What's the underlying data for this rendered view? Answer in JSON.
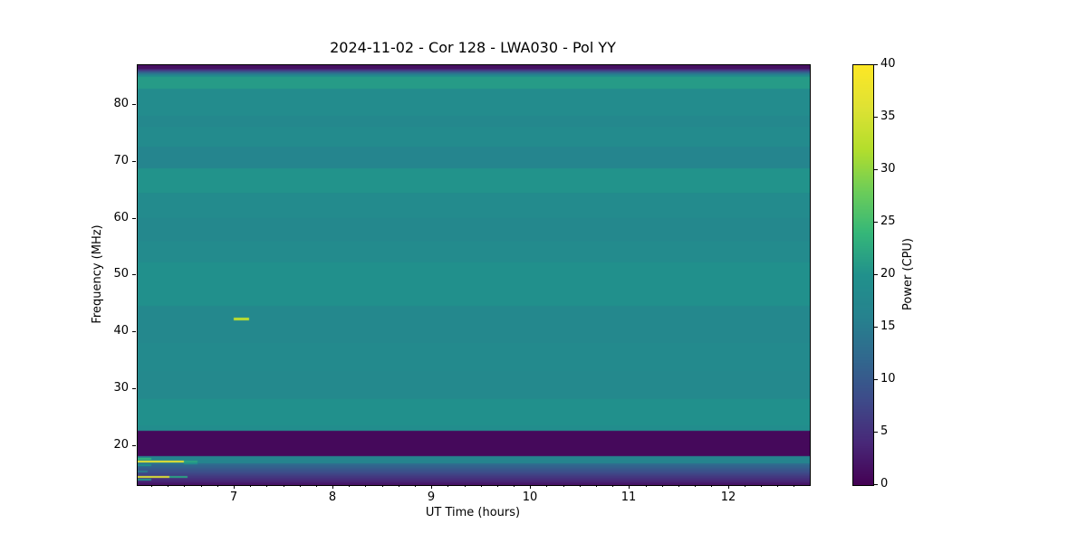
{
  "figure": {
    "background": "#ffffff",
    "spine_color": "#000000"
  },
  "chart_data": {
    "type": "heatmap",
    "title": "2024-11-02 - Cor 128 - LWA030 - Pol YY",
    "xlabel": "UT Time (hours)",
    "ylabel": "Frequency (MHz)",
    "colorbar_label": "Power (CPU)",
    "colormap": "viridis",
    "colormap_stops": [
      [
        0.0,
        "#440154"
      ],
      [
        0.1,
        "#482878"
      ],
      [
        0.2,
        "#3e4a89"
      ],
      [
        0.3,
        "#31688e"
      ],
      [
        0.4,
        "#26828e"
      ],
      [
        0.5,
        "#21918c"
      ],
      [
        0.6,
        "#35b779"
      ],
      [
        0.7,
        "#6dcd59"
      ],
      [
        0.8,
        "#b4de2c"
      ],
      [
        0.9,
        "#dfe234"
      ],
      [
        1.0,
        "#fde725"
      ]
    ],
    "x_range": [
      6.02,
      12.82
    ],
    "y_range": [
      13.1,
      87.0
    ],
    "x_ticks": [
      7,
      8,
      9,
      10,
      11,
      12
    ],
    "x_minor_tick_interval_hours": 0.16667,
    "y_ticks": [
      20,
      30,
      40,
      50,
      60,
      70,
      80
    ],
    "colorbar_range": [
      0,
      40
    ],
    "colorbar_ticks": [
      0,
      5,
      10,
      15,
      20,
      25,
      30,
      35,
      40
    ],
    "grid": false,
    "legend": false,
    "bands_comment": "horizontal spectral bands: [freq_top_MHz, freq_bottom_MHz, power_at_top, power_at_bottom]",
    "bands": [
      [
        87.0,
        86.4,
        1.5,
        1.5
      ],
      [
        86.4,
        85.6,
        2.0,
        13.0
      ],
      [
        85.6,
        84.9,
        13.0,
        21.0
      ],
      [
        84.9,
        82.9,
        21.0,
        21.0
      ],
      [
        82.9,
        78.1,
        18.6,
        18.6
      ],
      [
        78.1,
        76.1,
        17.6,
        17.6
      ],
      [
        76.1,
        72.6,
        18.5,
        18.5
      ],
      [
        72.6,
        68.8,
        16.9,
        16.9
      ],
      [
        68.8,
        64.6,
        20.2,
        20.2
      ],
      [
        64.6,
        60.1,
        18.3,
        18.3
      ],
      [
        60.1,
        56.1,
        17.7,
        17.7
      ],
      [
        56.1,
        52.3,
        18.4,
        18.4
      ],
      [
        52.3,
        44.7,
        19.7,
        19.7
      ],
      [
        44.7,
        38.1,
        17.7,
        17.7
      ],
      [
        38.1,
        33.1,
        18.2,
        18.2
      ],
      [
        33.1,
        28.3,
        17.8,
        17.8
      ],
      [
        28.3,
        23.6,
        19.8,
        19.8
      ],
      [
        23.6,
        22.6,
        19.0,
        19.0
      ],
      [
        22.6,
        18.2,
        0.8,
        0.8
      ],
      [
        18.2,
        16.9,
        16.5,
        16.5
      ],
      [
        16.9,
        15.9,
        13.0,
        10.0
      ],
      [
        15.9,
        14.6,
        10.0,
        6.0
      ],
      [
        14.6,
        13.7,
        6.0,
        3.5
      ],
      [
        13.7,
        13.1,
        3.5,
        1.5
      ]
    ],
    "features_comment": "bright RFI/burst segments: [t_start_h, t_end_h, freq_top_MHz, freq_bottom_MHz, power]",
    "features": [
      [
        6.02,
        6.16,
        17.95,
        17.6,
        24
      ],
      [
        6.02,
        6.49,
        17.45,
        17.1,
        38
      ],
      [
        6.49,
        6.63,
        17.45,
        17.1,
        22
      ],
      [
        6.49,
        6.63,
        17.1,
        16.75,
        20
      ],
      [
        6.02,
        6.16,
        16.7,
        16.35,
        20
      ],
      [
        6.02,
        6.12,
        15.65,
        15.35,
        15
      ],
      [
        6.02,
        6.34,
        14.65,
        14.3,
        36
      ],
      [
        6.34,
        6.52,
        14.65,
        14.3,
        22
      ],
      [
        6.02,
        6.16,
        14.25,
        13.95,
        20
      ],
      [
        6.99,
        7.15,
        42.5,
        42.1,
        33
      ]
    ]
  }
}
